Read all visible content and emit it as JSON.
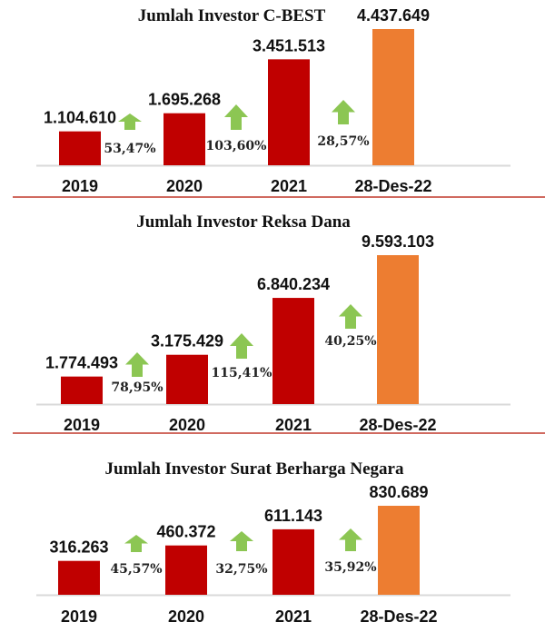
{
  "colors": {
    "bar": "#c00000",
    "latest_bar": "#ed7d31",
    "arrow": "#8cc653",
    "separator": "#c0392b",
    "baseline": "#d9d9d9"
  },
  "chart_data": [
    {
      "type": "bar",
      "title": "Jumlah Investor C-BEST",
      "categories": [
        "2019",
        "2020",
        "2021",
        "28-Des-22"
      ],
      "values": [
        1104610,
        1695268,
        3451513,
        4437649
      ],
      "value_labels": [
        "1.104.610",
        "1.695.268",
        "3.451.513",
        "4.437.649"
      ],
      "growth_labels": [
        "53,47%",
        "103,60%",
        "28,57%"
      ],
      "growth_icon": "up-arrow-icon"
    },
    {
      "type": "bar",
      "title": "Jumlah Investor Reksa Dana",
      "categories": [
        "2019",
        "2020",
        "2021",
        "28-Des-22"
      ],
      "values": [
        1774493,
        3175429,
        6840234,
        9593103
      ],
      "value_labels": [
        "1.774.493",
        "3.175.429",
        "6.840.234",
        "9.593.103"
      ],
      "growth_labels": [
        "78,95%",
        "115,41%",
        "40,25%"
      ],
      "growth_icon": "up-arrow-icon"
    },
    {
      "type": "bar",
      "title": "Jumlah Investor Surat Berharga Negara",
      "categories": [
        "2019",
        "2020",
        "2021",
        "28-Des-22"
      ],
      "values": [
        316263,
        460372,
        611143,
        830689
      ],
      "value_labels": [
        "316.263",
        "460.372",
        "611.143",
        "830.689"
      ],
      "growth_labels": [
        "45,57%",
        "32,75%",
        "35,92%"
      ],
      "growth_icon": "up-arrow-icon"
    }
  ]
}
